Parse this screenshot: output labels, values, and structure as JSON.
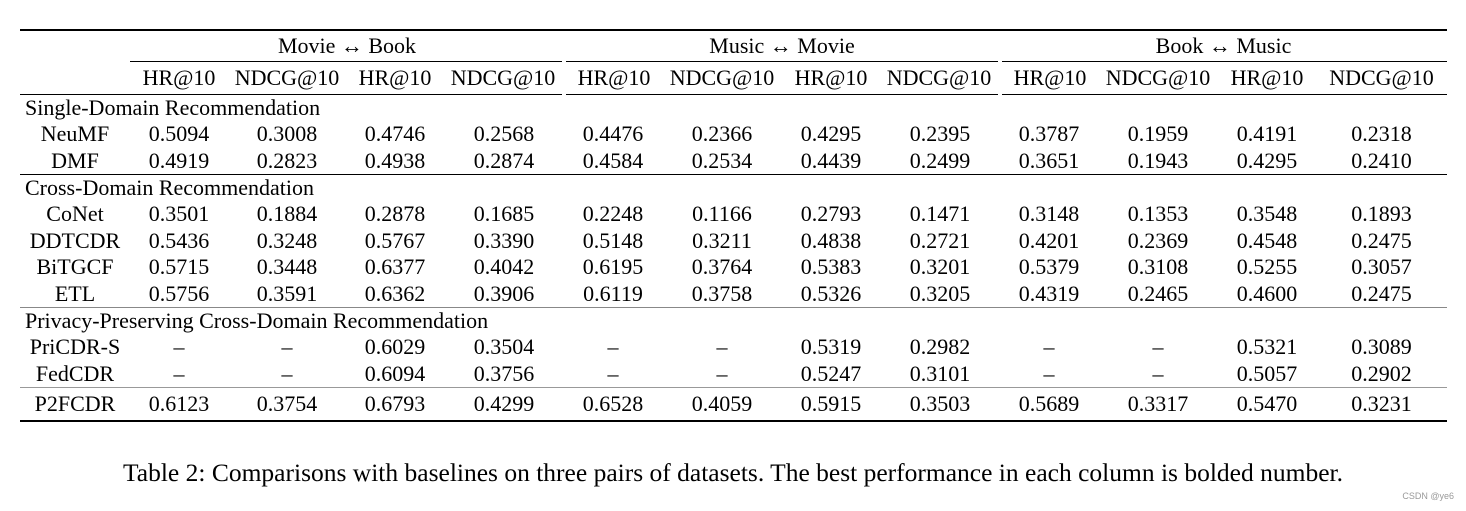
{
  "table": {
    "groups": [
      "Movie ↔ Book",
      "Music ↔ Movie",
      "Book ↔ Music"
    ],
    "metrics": [
      "HR@10",
      "NDCG@10",
      "HR@10",
      "NDCG@10",
      "HR@10",
      "NDCG@10",
      "HR@10",
      "NDCG@10",
      "HR@10",
      "NDCG@10",
      "HR@10",
      "NDCG@10"
    ],
    "sections": [
      {
        "title": "Single-Domain Recommendation",
        "rows": [
          {
            "name": "NeuMF",
            "values": [
              "0.5094",
              "0.3008",
              "0.4746",
              "0.2568",
              "0.4476",
              "0.2366",
              "0.4295",
              "0.2395",
              "0.3787",
              "0.1959",
              "0.4191",
              "0.2318"
            ]
          },
          {
            "name": "DMF",
            "values": [
              "0.4919",
              "0.2823",
              "0.4938",
              "0.2874",
              "0.4584",
              "0.2534",
              "0.4439",
              "0.2499",
              "0.3651",
              "0.1943",
              "0.4295",
              "0.2410"
            ]
          }
        ]
      },
      {
        "title": "Cross-Domain Recommendation",
        "rows": [
          {
            "name": "CoNet",
            "values": [
              "0.3501",
              "0.1884",
              "0.2878",
              "0.1685",
              "0.2248",
              "0.1166",
              "0.2793",
              "0.1471",
              "0.3148",
              "0.1353",
              "0.3548",
              "0.1893"
            ]
          },
          {
            "name": "DDTCDR",
            "values": [
              "0.5436",
              "0.3248",
              "0.5767",
              "0.3390",
              "0.5148",
              "0.3211",
              "0.4838",
              "0.2721",
              "0.4201",
              "0.2369",
              "0.4548",
              "0.2475"
            ]
          },
          {
            "name": "BiTGCF",
            "values": [
              "0.5715",
              "0.3448",
              "0.6377",
              "0.4042",
              "0.6195",
              "0.3764",
              "0.5383",
              "0.3201",
              "0.5379",
              "0.3108",
              "0.5255",
              "0.3057"
            ]
          },
          {
            "name": "ETL",
            "values": [
              "0.5756",
              "0.3591",
              "0.6362",
              "0.3906",
              "0.6119",
              "0.3758",
              "0.5326",
              "0.3205",
              "0.4319",
              "0.2465",
              "0.4600",
              "0.2475"
            ]
          }
        ]
      },
      {
        "title": "Privacy-Preserving Cross-Domain Recommendation",
        "rows": [
          {
            "name": "PriCDR-S",
            "values": [
              "–",
              "–",
              "0.6029",
              "0.3504",
              "–",
              "–",
              "0.5319",
              "0.2982",
              "–",
              "–",
              "0.5321",
              "0.3089"
            ]
          },
          {
            "name": "FedCDR",
            "values": [
              "–",
              "–",
              "0.6094",
              "0.3756",
              "–",
              "–",
              "0.5247",
              "0.3101",
              "–",
              "–",
              "0.5057",
              "0.2902"
            ]
          }
        ]
      }
    ],
    "best": {
      "name": "P2FCDR",
      "values": [
        "0.6123",
        "0.3754",
        "0.6793",
        "0.4299",
        "0.6528",
        "0.4059",
        "0.5915",
        "0.3503",
        "0.5689",
        "0.3317",
        "0.5470",
        "0.3231"
      ]
    }
  },
  "caption": "Table 2: Comparisons with baselines on three pairs of datasets. The best performance in each column is bolded number.",
  "watermark": "CSDN @ye6"
}
